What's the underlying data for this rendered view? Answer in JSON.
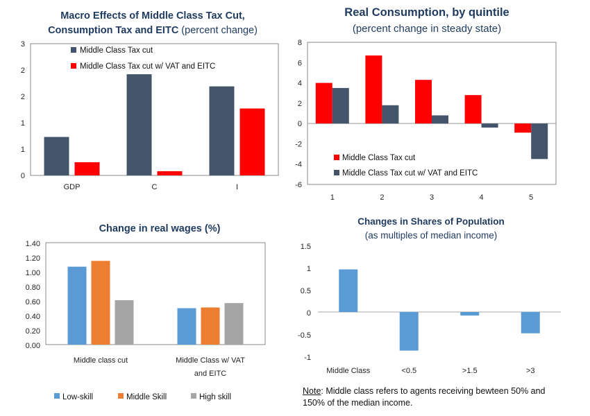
{
  "colors": {
    "navy": "#44546a",
    "red": "#ff0000",
    "blue": "#5b9bd5",
    "orange": "#ed7d31",
    "gray": "#a5a5a5",
    "title": "#1f3a5f"
  },
  "chart_data": [
    {
      "id": "macro",
      "type": "bar",
      "title": "Macro Effects of Middle Class Tax Cut,",
      "title_line2": "Consumption Tax and EITC",
      "title_suffix": "(percent change)",
      "categories": [
        "GDP",
        "C",
        "I"
      ],
      "ytick_labels": [
        "0",
        "1",
        "1",
        "2",
        "2",
        "3"
      ],
      "ylim": [
        0,
        2.5
      ],
      "grid": false,
      "legend_position": "top-left",
      "series": [
        {
          "name": "Middle Class Tax cut",
          "color": "#44546a",
          "values": [
            0.73,
            1.92,
            1.69
          ]
        },
        {
          "name": "Middle Class Tax cut w/ VAT and EITC",
          "color": "#ff0000",
          "values": [
            0.25,
            0.08,
            1.27
          ]
        }
      ]
    },
    {
      "id": "quintile",
      "type": "bar",
      "title": "Real Consumption, by quintile",
      "subtitle": "(percent change in steady state)",
      "categories": [
        "1",
        "2",
        "3",
        "4",
        "5"
      ],
      "yticks": [
        -6,
        -4,
        -2,
        0,
        2,
        4,
        6,
        8
      ],
      "ylim": [
        -6,
        8
      ],
      "grid": false,
      "legend_position": "bottom-left",
      "series": [
        {
          "name": "Middle Class Tax cut",
          "color": "#ff0000",
          "values": [
            4.0,
            6.7,
            4.3,
            2.8,
            -0.9
          ]
        },
        {
          "name": "Middle Class Tax cut w/ VAT and EITC",
          "color": "#44546a",
          "values": [
            3.5,
            1.8,
            0.8,
            -0.4,
            -3.5
          ]
        }
      ]
    },
    {
      "id": "wages",
      "type": "bar",
      "title": "Change in real wages (%)",
      "categories": [
        "Middle class cut",
        "Middle Class w/ VAT|and EITC"
      ],
      "yticks": [
        "0.00",
        "0.20",
        "0.40",
        "0.60",
        "0.80",
        "1.00",
        "1.20",
        "1.40"
      ],
      "ylim": [
        0,
        1.4
      ],
      "grid": false,
      "legend_position": "bottom",
      "series": [
        {
          "name": "Low-skill",
          "color": "#5b9bd5",
          "values": [
            1.07,
            0.5
          ]
        },
        {
          "name": "Middle Skill",
          "color": "#ed7d31",
          "values": [
            1.15,
            0.51
          ]
        },
        {
          "name": "High skill",
          "color": "#a5a5a5",
          "values": [
            0.61,
            0.57
          ]
        }
      ]
    },
    {
      "id": "shares",
      "type": "bar",
      "title": "Changes in Shares of Population",
      "subtitle": "(as multiples of median income)",
      "categories": [
        "Middle Class",
        "<0.5",
        ">1.5",
        ">3"
      ],
      "yticks": [
        "-1",
        "-0.5",
        "0",
        "0.5",
        "1",
        "1.5"
      ],
      "ylim": [
        -1,
        1.5
      ],
      "grid": false,
      "series": [
        {
          "color": "#5b9bd5",
          "values": [
            0.96,
            -0.87,
            -0.08,
            -0.48
          ]
        }
      ]
    }
  ],
  "note": {
    "label": "Note",
    "text": ": Middle class refers to agents receiving bewteen 50% and 150% of the median income."
  }
}
